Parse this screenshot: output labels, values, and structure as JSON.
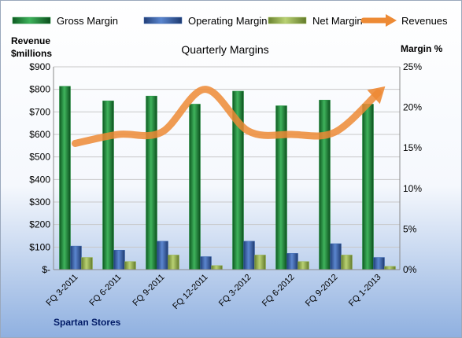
{
  "chart_data": {
    "type": "bar",
    "title": "Quarterly Margins",
    "footer": "Spartan Stores",
    "left_axis_title": [
      "Revenue",
      "$millions"
    ],
    "right_axis_title": "Margin %",
    "categories": [
      "FQ 3-2011",
      "FQ 6-2011",
      "FQ 9-2011",
      "FQ 12-2011",
      "FQ 3-2012",
      "FQ 6-2012",
      "FQ 9-2012",
      "FQ 1-2013"
    ],
    "left_ticks": [
      "$-",
      "$100",
      "$200",
      "$300",
      "$400",
      "$500",
      "$600",
      "$700",
      "$800",
      "$900"
    ],
    "right_ticks": [
      "0%",
      "5%",
      "10%",
      "15%",
      "20%",
      "25%"
    ],
    "left_range": [
      0,
      900
    ],
    "right_range": [
      0,
      25
    ],
    "legend_placement": "top",
    "series": [
      {
        "name": "Gross Margin",
        "kind": "bar",
        "axis": "right",
        "color": "#1f8f3c",
        "values": [
          22.6,
          20.8,
          21.4,
          20.4,
          22.0,
          20.2,
          20.9,
          20.4
        ]
      },
      {
        "name": "Operating Margin",
        "kind": "bar",
        "axis": "right",
        "color": "#3a66b0",
        "values": [
          2.9,
          2.4,
          3.5,
          1.6,
          3.5,
          2.0,
          3.2,
          1.5
        ]
      },
      {
        "name": "Net Margin",
        "kind": "bar",
        "axis": "right",
        "color": "#98b54f",
        "values": [
          1.5,
          1.0,
          1.8,
          0.5,
          1.8,
          1.0,
          1.8,
          0.4
        ]
      },
      {
        "name": "Revenues",
        "kind": "line",
        "axis": "left",
        "color": "#ed8a35",
        "values": [
          560,
          600,
          610,
          800,
          615,
          600,
          610,
          785
        ]
      }
    ]
  }
}
